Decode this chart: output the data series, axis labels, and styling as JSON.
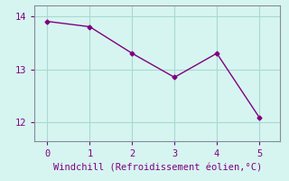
{
  "x": [
    0,
    1,
    2,
    3,
    4,
    5
  ],
  "y": [
    13.9,
    13.8,
    13.3,
    12.85,
    13.3,
    12.1
  ],
  "line_color": "#800080",
  "marker": "D",
  "marker_size": 2.5,
  "line_width": 1.0,
  "xlabel": "Windchill (Refroidissement éolien,°C)",
  "xlabel_color": "#800080",
  "xlabel_fontsize": 7.5,
  "ylim": [
    11.65,
    14.2
  ],
  "xlim": [
    -0.3,
    5.5
  ],
  "yticks": [
    12,
    13,
    14
  ],
  "xticks": [
    0,
    1,
    2,
    3,
    4,
    5
  ],
  "tick_color": "#800080",
  "tick_fontsize": 7.5,
  "bg_color": "#d6f5f0",
  "grid_color": "#aad8d2",
  "spine_color": "#888899"
}
